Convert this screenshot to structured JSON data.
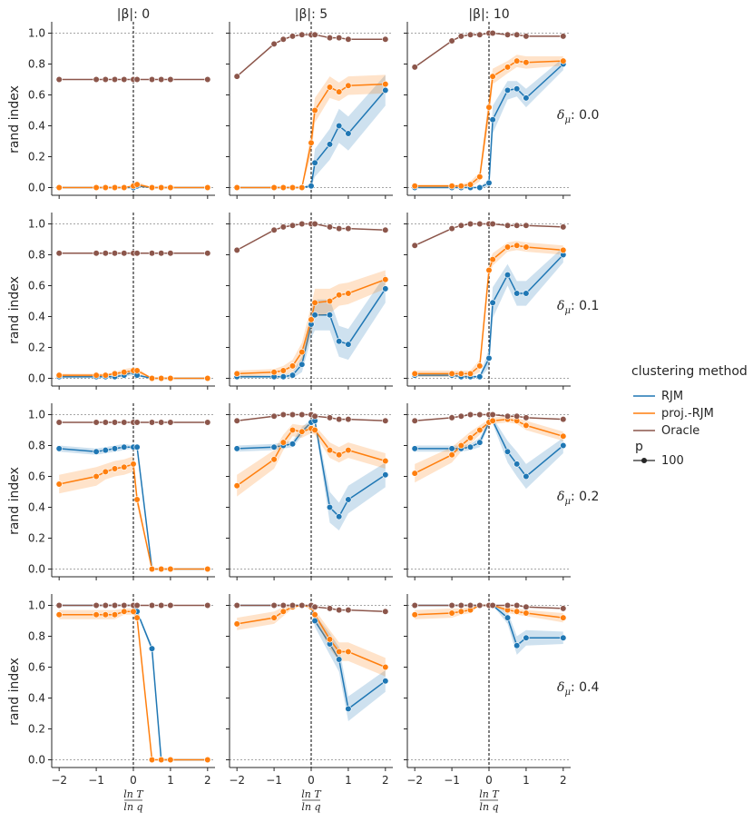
{
  "chart_data": {
    "type": "line",
    "facet": {
      "col_prefix": "|β|: ",
      "cols": [
        "0",
        "5",
        "10"
      ],
      "row_prefix": "δ",
      "row_sub": "μ",
      "row_sep": ": ",
      "rows": [
        "0.0",
        "0.1",
        "0.2",
        "0.4"
      ]
    },
    "ylabel": "rand index",
    "xlabel": {
      "numerator": "ln T",
      "denominator": "ln q"
    },
    "xlim": [
      -2.2,
      2.2
    ],
    "ylim": [
      -0.05,
      1.05
    ],
    "xticks": [
      -2,
      -1,
      0,
      1,
      2
    ],
    "yticks": [
      0.0,
      0.2,
      0.4,
      0.6,
      0.8,
      1.0
    ],
    "ytick_labels": [
      "0.0",
      "0.2",
      "0.4",
      "0.6",
      "0.8",
      "1.0"
    ],
    "reference_lines": {
      "horizontal": [
        0.0,
        1.0
      ],
      "vertical": [
        0
      ]
    },
    "x": [
      -2,
      -1,
      -0.75,
      -0.5,
      -0.25,
      0,
      0.1,
      0.5,
      0.75,
      1,
      2
    ],
    "legend": {
      "title": "clustering method",
      "entries": [
        "RJM",
        "proj.-RJM",
        "Oracle"
      ],
      "size_title": "p",
      "size_entries": [
        "100"
      ],
      "placement": "center-right"
    },
    "colors": {
      "RJM": "#1f77b4",
      "proj.-RJM": "#ff7f0e",
      "Oracle": "#8c564b"
    },
    "panels": [
      [
        {
          "Oracle": [
            0.7,
            0.7,
            0.7,
            0.7,
            0.7,
            0.7,
            0.7,
            0.7,
            0.7,
            0.7,
            0.7
          ],
          "proj.-RJM": [
            0.0,
            0.0,
            0.0,
            0.0,
            0.0,
            0.01,
            0.02,
            0.0,
            0.0,
            0.0,
            0.0
          ],
          "RJM": [
            0.0,
            0.0,
            0.0,
            0.0,
            0.0,
            0.0,
            0.01,
            0.0,
            0.0,
            0.0,
            0.0
          ],
          "band": {
            "proj.-RJM": [
              0,
              0,
              0,
              0,
              0,
              0.01,
              0.02,
              0,
              0,
              0,
              0
            ],
            "RJM": [
              0,
              0,
              0,
              0,
              0,
              0.005,
              0.01,
              0,
              0,
              0,
              0
            ]
          }
        },
        {
          "Oracle": [
            0.72,
            0.93,
            0.96,
            0.98,
            0.99,
            0.99,
            0.99,
            0.97,
            0.97,
            0.96,
            0.96
          ],
          "proj.-RJM": [
            0.0,
            0.0,
            0.0,
            0.0,
            0.0,
            0.29,
            0.5,
            0.65,
            0.62,
            0.66,
            0.67
          ],
          "RJM": [
            0.0,
            0.0,
            0.0,
            0.0,
            0.0,
            0.01,
            0.16,
            0.28,
            0.4,
            0.35,
            0.63
          ],
          "band": {
            "proj.-RJM": [
              0,
              0,
              0,
              0,
              0,
              0.08,
              0.08,
              0.07,
              0.06,
              0.06,
              0.06
            ],
            "RJM": [
              0,
              0,
              0,
              0,
              0,
              0.02,
              0.09,
              0.1,
              0.11,
              0.11,
              0.1
            ]
          }
        },
        {
          "Oracle": [
            0.78,
            0.95,
            0.98,
            0.99,
            0.99,
            1.0,
            1.0,
            0.99,
            0.99,
            0.98,
            0.98
          ],
          "proj.-RJM": [
            0.01,
            0.01,
            0.01,
            0.02,
            0.07,
            0.52,
            0.72,
            0.78,
            0.82,
            0.81,
            0.82
          ],
          "RJM": [
            0.0,
            0.0,
            0.0,
            0.0,
            0.0,
            0.03,
            0.44,
            0.63,
            0.64,
            0.58,
            0.8
          ],
          "band": {
            "proj.-RJM": [
              0.01,
              0.01,
              0.01,
              0.02,
              0.03,
              0.08,
              0.05,
              0.04,
              0.04,
              0.04,
              0.03
            ],
            "RJM": [
              0,
              0,
              0,
              0,
              0,
              0.03,
              0.09,
              0.06,
              0.05,
              0.06,
              0.04
            ]
          }
        }
      ],
      [
        {
          "Oracle": [
            0.81,
            0.81,
            0.81,
            0.81,
            0.81,
            0.81,
            0.81,
            0.81,
            0.81,
            0.81,
            0.81
          ],
          "proj.-RJM": [
            0.02,
            0.02,
            0.02,
            0.03,
            0.04,
            0.05,
            0.05,
            0.0,
            0.0,
            0.0,
            0.0
          ],
          "RJM": [
            0.01,
            0.01,
            0.01,
            0.01,
            0.02,
            0.04,
            0.02,
            0.0,
            0.0,
            0.0,
            0.0
          ],
          "band": {
            "proj.-RJM": [
              0.01,
              0.01,
              0.01,
              0.01,
              0.02,
              0.02,
              0.02,
              0,
              0,
              0,
              0
            ],
            "RJM": [
              0.01,
              0.01,
              0.01,
              0.01,
              0.01,
              0.02,
              0.01,
              0,
              0,
              0,
              0
            ]
          }
        },
        {
          "Oracle": [
            0.83,
            0.96,
            0.98,
            0.99,
            1.0,
            1.0,
            1.0,
            0.98,
            0.97,
            0.97,
            0.96
          ],
          "proj.-RJM": [
            0.03,
            0.04,
            0.05,
            0.08,
            0.17,
            0.38,
            0.49,
            0.5,
            0.54,
            0.55,
            0.64
          ],
          "RJM": [
            0.01,
            0.01,
            0.01,
            0.02,
            0.09,
            0.35,
            0.41,
            0.41,
            0.24,
            0.22,
            0.58
          ],
          "band": {
            "proj.-RJM": [
              0.02,
              0.02,
              0.03,
              0.04,
              0.06,
              0.09,
              0.09,
              0.08,
              0.07,
              0.07,
              0.06
            ],
            "RJM": [
              0.01,
              0.01,
              0.01,
              0.02,
              0.05,
              0.09,
              0.1,
              0.1,
              0.1,
              0.1,
              0.09
            ]
          }
        },
        {
          "Oracle": [
            0.86,
            0.97,
            0.99,
            1.0,
            1.0,
            1.0,
            1.0,
            0.99,
            0.99,
            0.99,
            0.98
          ],
          "proj.-RJM": [
            0.03,
            0.03,
            0.03,
            0.03,
            0.08,
            0.7,
            0.77,
            0.85,
            0.86,
            0.85,
            0.83
          ],
          "RJM": [
            0.02,
            0.02,
            0.01,
            0.01,
            0.01,
            0.13,
            0.49,
            0.67,
            0.55,
            0.55,
            0.8
          ],
          "band": {
            "proj.-RJM": [
              0.02,
              0.02,
              0.02,
              0.02,
              0.04,
              0.05,
              0.04,
              0.03,
              0.03,
              0.03,
              0.03
            ],
            "RJM": [
              0.01,
              0.01,
              0.01,
              0.01,
              0.01,
              0.06,
              0.1,
              0.07,
              0.08,
              0.08,
              0.05
            ]
          }
        }
      ],
      [
        {
          "Oracle": [
            0.95,
            0.95,
            0.95,
            0.95,
            0.95,
            0.95,
            0.95,
            0.95,
            0.95,
            0.95,
            0.95
          ],
          "proj.-RJM": [
            0.55,
            0.6,
            0.63,
            0.65,
            0.66,
            0.68,
            0.45,
            0.0,
            0.0,
            0.0,
            0.0
          ],
          "RJM": [
            0.78,
            0.76,
            0.77,
            0.78,
            0.79,
            0.79,
            0.79,
            0.0,
            0.0,
            0.0,
            0.0
          ],
          "band": {
            "proj.-RJM": [
              0.06,
              0.06,
              0.05,
              0.05,
              0.05,
              0.05,
              0.04,
              0,
              0,
              0,
              0
            ],
            "RJM": [
              0.02,
              0.02,
              0.02,
              0.02,
              0.02,
              0.01,
              0.01,
              0,
              0,
              0,
              0
            ]
          }
        },
        {
          "Oracle": [
            0.96,
            0.99,
            1.0,
            1.0,
            1.0,
            1.0,
            0.99,
            0.98,
            0.97,
            0.97,
            0.96
          ],
          "proj.-RJM": [
            0.54,
            0.71,
            0.82,
            0.9,
            0.89,
            0.91,
            0.9,
            0.77,
            0.74,
            0.77,
            0.7
          ],
          "RJM": [
            0.78,
            0.79,
            0.8,
            0.81,
            0.89,
            0.95,
            0.96,
            0.4,
            0.34,
            0.45,
            0.61
          ],
          "band": {
            "proj.-RJM": [
              0.07,
              0.06,
              0.05,
              0.04,
              0.04,
              0.03,
              0.03,
              0.05,
              0.05,
              0.05,
              0.05
            ],
            "RJM": [
              0.02,
              0.02,
              0.02,
              0.02,
              0.03,
              0.02,
              0.02,
              0.1,
              0.09,
              0.09,
              0.08
            ]
          }
        },
        {
          "Oracle": [
            0.96,
            0.98,
            0.99,
            1.0,
            1.0,
            1.0,
            1.0,
            0.99,
            0.99,
            0.98,
            0.97
          ],
          "proj.-RJM": [
            0.62,
            0.74,
            0.8,
            0.85,
            0.9,
            0.95,
            0.96,
            0.97,
            0.96,
            0.93,
            0.86
          ],
          "RJM": [
            0.78,
            0.78,
            0.78,
            0.79,
            0.82,
            0.95,
            0.96,
            0.76,
            0.68,
            0.6,
            0.8
          ],
          "band": {
            "proj.-RJM": [
              0.06,
              0.05,
              0.04,
              0.04,
              0.03,
              0.02,
              0.02,
              0.02,
              0.02,
              0.03,
              0.03
            ],
            "RJM": [
              0.02,
              0.02,
              0.02,
              0.02,
              0.03,
              0.02,
              0.02,
              0.07,
              0.08,
              0.08,
              0.05
            ]
          }
        }
      ],
      [
        {
          "Oracle": [
            1.0,
            1.0,
            1.0,
            1.0,
            1.0,
            1.0,
            1.0,
            1.0,
            1.0,
            1.0,
            1.0
          ],
          "proj.-RJM": [
            0.94,
            0.94,
            0.94,
            0.94,
            0.96,
            0.96,
            0.92,
            0.0,
            0.0,
            0.0,
            0.0
          ],
          "RJM": [
            1.0,
            1.0,
            1.0,
            1.0,
            1.0,
            1.0,
            0.96,
            0.72,
            0.0,
            0.0,
            0.0
          ],
          "band": {
            "proj.-RJM": [
              0.03,
              0.03,
              0.03,
              0.03,
              0.02,
              0.02,
              0.02,
              0,
              0,
              0,
              0
            ],
            "RJM": [
              0,
              0,
              0,
              0,
              0,
              0,
              0.01,
              0.02,
              0,
              0,
              0
            ]
          }
        },
        {
          "Oracle": [
            1.0,
            1.0,
            1.0,
            1.0,
            1.0,
            1.0,
            0.99,
            0.98,
            0.97,
            0.97,
            0.96
          ],
          "proj.-RJM": [
            0.88,
            0.92,
            0.96,
            0.99,
            1.0,
            0.99,
            0.94,
            0.78,
            0.7,
            0.7,
            0.6
          ],
          "RJM": [
            1.0,
            1.0,
            1.0,
            1.0,
            1.0,
            0.99,
            0.9,
            0.75,
            0.65,
            0.33,
            0.51
          ],
          "band": {
            "proj.-RJM": [
              0.04,
              0.04,
              0.03,
              0.01,
              0,
              0.01,
              0.03,
              0.06,
              0.06,
              0.06,
              0.06
            ],
            "RJM": [
              0,
              0,
              0,
              0,
              0,
              0.01,
              0.04,
              0.07,
              0.08,
              0.08,
              0.07
            ]
          }
        },
        {
          "Oracle": [
            1.0,
            1.0,
            1.0,
            1.0,
            1.0,
            1.0,
            1.0,
            1.0,
            1.0,
            0.99,
            0.98
          ],
          "proj.-RJM": [
            0.94,
            0.95,
            0.96,
            0.97,
            1.0,
            1.0,
            1.0,
            0.97,
            0.96,
            0.95,
            0.92
          ],
          "RJM": [
            1.0,
            1.0,
            1.0,
            1.0,
            1.0,
            1.0,
            1.0,
            0.92,
            0.74,
            0.79,
            0.79
          ],
          "band": {
            "proj.-RJM": [
              0.03,
              0.03,
              0.02,
              0.02,
              0,
              0,
              0,
              0.02,
              0.02,
              0.02,
              0.03
            ],
            "RJM": [
              0,
              0,
              0,
              0,
              0,
              0,
              0,
              0.04,
              0.06,
              0.05,
              0.04
            ]
          }
        }
      ]
    ]
  }
}
